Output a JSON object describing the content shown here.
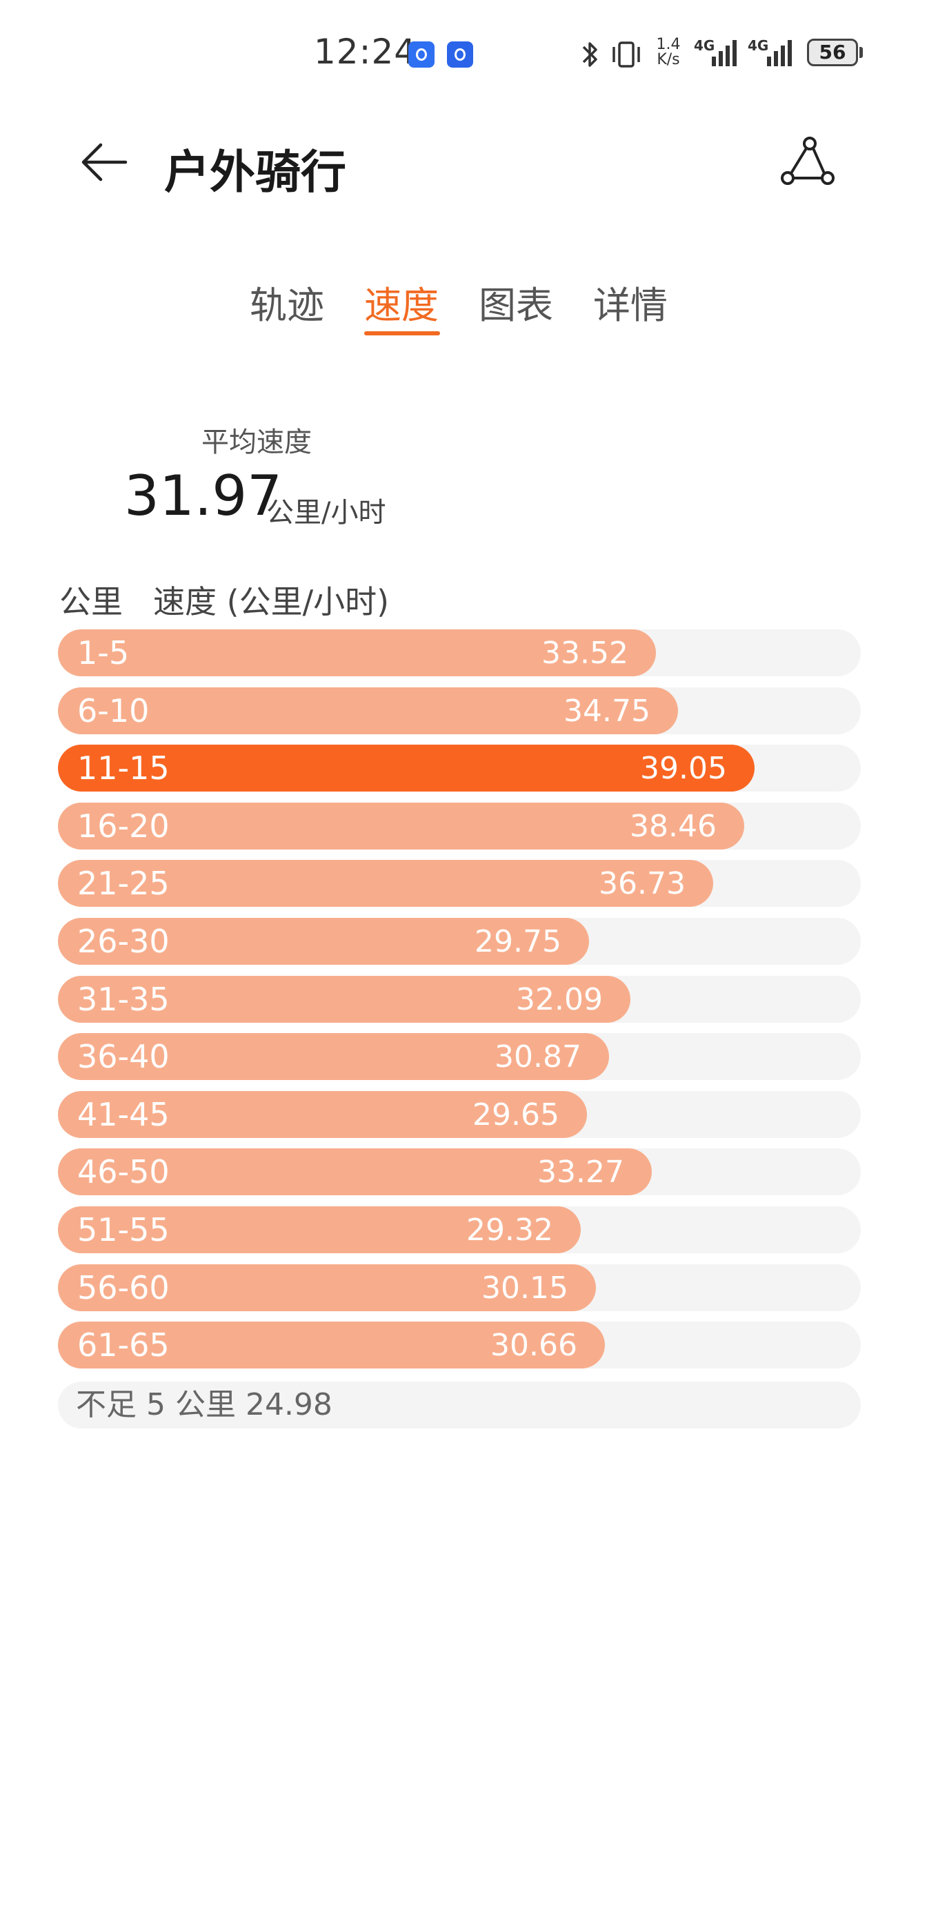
{
  "status_bar": {
    "time": "12:24",
    "net_speed_value": "1.4",
    "net_speed_unit": "K/s",
    "sim1_label": "4G",
    "sim2_label": "4G",
    "battery": "56",
    "icons": [
      "voice-app-icon",
      "shield-app-icon",
      "bluetooth-icon",
      "vibrate-icon",
      "signal-icon",
      "signal-icon",
      "battery-icon"
    ]
  },
  "header": {
    "title": "户外骑行",
    "back_icon": "arrow-left-icon",
    "share_icon": "route-share-icon"
  },
  "tabs": [
    {
      "label": "轨迹",
      "active": false
    },
    {
      "label": "速度",
      "active": true
    },
    {
      "label": "图表",
      "active": false
    },
    {
      "label": "详情",
      "active": false
    }
  ],
  "average": {
    "label": "平均速度",
    "value": "31.97",
    "unit": "公里/小时"
  },
  "list_header": {
    "km": "公里",
    "speed": "速度 (公里/小时)"
  },
  "speed_max": 45,
  "rows": [
    {
      "range": "1-5",
      "speed": "33.52",
      "speed_num": 33.52,
      "highlight": false
    },
    {
      "range": "6-10",
      "speed": "34.75",
      "speed_num": 34.75,
      "highlight": false
    },
    {
      "range": "11-15",
      "speed": "39.05",
      "speed_num": 39.05,
      "highlight": true
    },
    {
      "range": "16-20",
      "speed": "38.46",
      "speed_num": 38.46,
      "highlight": false
    },
    {
      "range": "21-25",
      "speed": "36.73",
      "speed_num": 36.73,
      "highlight": false
    },
    {
      "range": "26-30",
      "speed": "29.75",
      "speed_num": 29.75,
      "highlight": false
    },
    {
      "range": "31-35",
      "speed": "32.09",
      "speed_num": 32.09,
      "highlight": false
    },
    {
      "range": "36-40",
      "speed": "30.87",
      "speed_num": 30.87,
      "highlight": false
    },
    {
      "range": "41-45",
      "speed": "29.65",
      "speed_num": 29.65,
      "highlight": false
    },
    {
      "range": "46-50",
      "speed": "33.27",
      "speed_num": 33.27,
      "highlight": false
    },
    {
      "range": "51-55",
      "speed": "29.32",
      "speed_num": 29.32,
      "highlight": false
    },
    {
      "range": "56-60",
      "speed": "30.15",
      "speed_num": 30.15,
      "highlight": false
    },
    {
      "range": "61-65",
      "speed": "30.66",
      "speed_num": 30.66,
      "highlight": false
    }
  ],
  "remainder": "不足 5 公里 24.98",
  "colors": {
    "accent": "#f26a22",
    "bar_highlight": "#f96521",
    "bar_normal": "#f7ad8c",
    "track": "#f4f4f4"
  }
}
